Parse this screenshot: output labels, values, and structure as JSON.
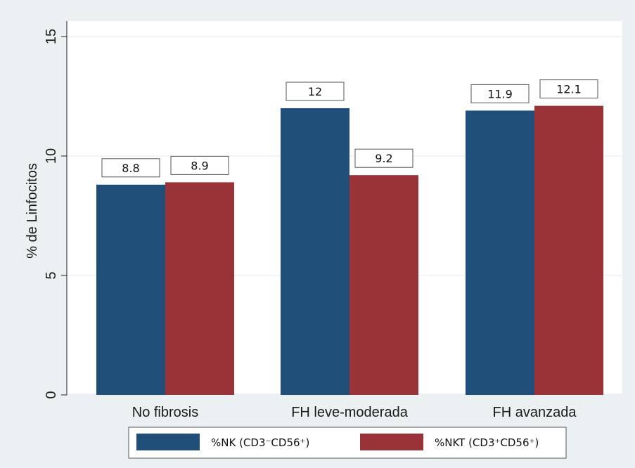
{
  "chart_data": {
    "type": "bar",
    "title": "",
    "xlabel": "",
    "ylabel": "% de Linfocitos",
    "categories": [
      "No fibrosis",
      "FH leve-moderada",
      "FH avanzada"
    ],
    "series": [
      {
        "name": "%NK (CD3⁻CD56⁺)",
        "values": [
          8.8,
          12,
          11.9
        ],
        "labels": [
          "8.8",
          "12",
          "11.9"
        ],
        "color": "#1f4e79"
      },
      {
        "name": "%NKT (CD3⁺CD56⁺)",
        "values": [
          8.9,
          9.2,
          12.1
        ],
        "labels": [
          "8.9",
          "9.2",
          "12.1"
        ],
        "color": "#9a3337"
      }
    ],
    "ylim": [
      0,
      15
    ],
    "yticks": [
      0,
      5,
      10,
      15
    ],
    "ytick_labels": [
      "0",
      "5",
      "10",
      "15"
    ],
    "grid": true,
    "legend_position": "bottom"
  },
  "colors": {
    "background": "#ebf0f2",
    "plot_area": "#ffffff",
    "nk": "#1f4e79",
    "nkt": "#9a3337"
  }
}
